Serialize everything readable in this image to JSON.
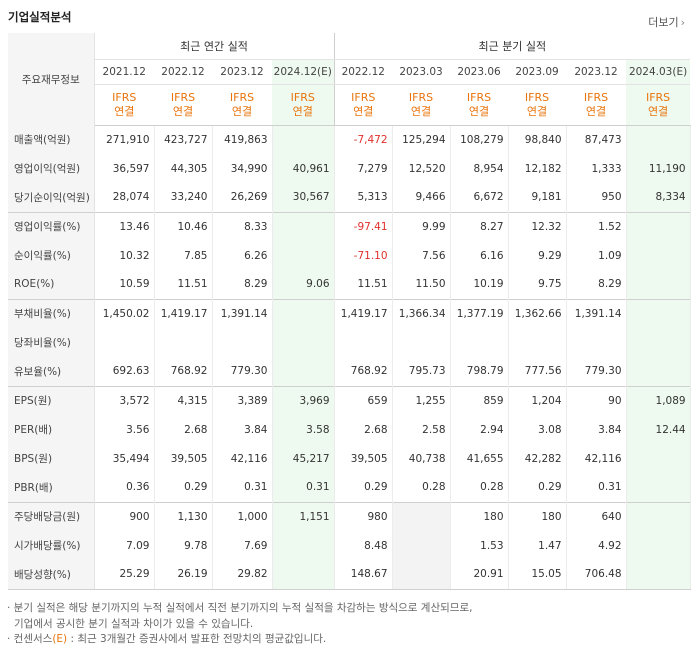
{
  "title": "기업실적분석",
  "more_label": "더보기",
  "more_icon": "chevron-right-icon",
  "corner_label": "주요재무정보",
  "groups": {
    "annual": "최근 연간 실적",
    "quarterly": "최근 분기 실적"
  },
  "annual_periods": [
    "2021.12",
    "2022.12",
    "2023.12",
    "2024.12(E)"
  ],
  "quarterly_periods": [
    "2022.12",
    "2023.03",
    "2023.06",
    "2023.09",
    "2023.12",
    "2024.03(E)"
  ],
  "ifrs_line1": "IFRS",
  "ifrs_line2": "연결",
  "rows": [
    {
      "label": "매출액(억원)",
      "annual": [
        "271,910",
        "423,727",
        "419,863",
        ""
      ],
      "quarterly": [
        "-7,472",
        "125,294",
        "108,279",
        "98,840",
        "87,473",
        ""
      ]
    },
    {
      "label": "영업이익(억원)",
      "annual": [
        "36,597",
        "44,305",
        "34,990",
        "40,961"
      ],
      "quarterly": [
        "7,279",
        "12,520",
        "8,954",
        "12,182",
        "1,333",
        "11,190"
      ]
    },
    {
      "label": "당기순이익(억원)",
      "annual": [
        "28,074",
        "33,240",
        "26,269",
        "30,567"
      ],
      "quarterly": [
        "5,313",
        "9,466",
        "6,672",
        "9,181",
        "950",
        "8,334"
      ]
    },
    {
      "label": "영업이익률(%)",
      "annual": [
        "13.46",
        "10.46",
        "8.33",
        ""
      ],
      "quarterly": [
        "-97.41",
        "9.99",
        "8.27",
        "12.32",
        "1.52",
        ""
      ]
    },
    {
      "label": "순이익률(%)",
      "annual": [
        "10.32",
        "7.85",
        "6.26",
        ""
      ],
      "quarterly": [
        "-71.10",
        "7.56",
        "6.16",
        "9.29",
        "1.09",
        ""
      ]
    },
    {
      "label": "ROE(%)",
      "annual": [
        "10.59",
        "11.51",
        "8.29",
        "9.06"
      ],
      "quarterly": [
        "11.51",
        "11.50",
        "10.19",
        "9.75",
        "8.29",
        ""
      ]
    },
    {
      "label": "부채비율(%)",
      "annual": [
        "1,450.02",
        "1,419.17",
        "1,391.14",
        ""
      ],
      "quarterly": [
        "1,419.17",
        "1,366.34",
        "1,377.19",
        "1,362.66",
        "1,391.14",
        ""
      ]
    },
    {
      "label": "당좌비율(%)",
      "annual": [
        "",
        "",
        "",
        ""
      ],
      "quarterly": [
        "",
        "",
        "",
        "",
        "",
        ""
      ]
    },
    {
      "label": "유보율(%)",
      "annual": [
        "692.63",
        "768.92",
        "779.30",
        ""
      ],
      "quarterly": [
        "768.92",
        "795.73",
        "798.79",
        "777.56",
        "779.30",
        ""
      ]
    },
    {
      "label": "EPS(원)",
      "annual": [
        "3,572",
        "4,315",
        "3,389",
        "3,969"
      ],
      "quarterly": [
        "659",
        "1,255",
        "859",
        "1,204",
        "90",
        "1,089"
      ]
    },
    {
      "label": "PER(배)",
      "annual": [
        "3.56",
        "2.68",
        "3.84",
        "3.58"
      ],
      "quarterly": [
        "2.68",
        "2.58",
        "2.94",
        "3.08",
        "3.84",
        "12.44"
      ]
    },
    {
      "label": "BPS(원)",
      "annual": [
        "35,494",
        "39,505",
        "42,116",
        "45,217"
      ],
      "quarterly": [
        "39,505",
        "40,738",
        "41,655",
        "42,282",
        "42,116",
        ""
      ]
    },
    {
      "label": "PBR(배)",
      "annual": [
        "0.36",
        "0.29",
        "0.31",
        "0.31"
      ],
      "quarterly": [
        "0.29",
        "0.28",
        "0.28",
        "0.29",
        "0.31",
        ""
      ]
    },
    {
      "label": "주당배당금(원)",
      "annual": [
        "900",
        "1,130",
        "1,000",
        "1,151"
      ],
      "quarterly": [
        "980",
        "",
        "180",
        "180",
        "640",
        ""
      ]
    },
    {
      "label": "시가배당률(%)",
      "annual": [
        "7.09",
        "9.78",
        "7.69",
        ""
      ],
      "quarterly": [
        "8.48",
        "",
        "1.53",
        "1.47",
        "4.92",
        ""
      ]
    },
    {
      "label": "배당성향(%)",
      "annual": [
        "25.29",
        "26.19",
        "29.82",
        ""
      ],
      "quarterly": [
        "148.67",
        "",
        "20.91",
        "15.05",
        "706.48",
        ""
      ]
    }
  ],
  "notes": {
    "line1": "· 분기 실적은 해당 분기까지의 누적 실적에서 직전 분기까지의 누적 실적을 차감하는 방식으로 계산되므로,",
    "line2": "기업에서 공시한 분기 실적과 차이가 있을 수 있습니다.",
    "line3_prefix": "· 컨센서스",
    "line3_e": "(E)",
    "line3_suffix": " : 최근 3개월간 증권사에서 발표한 전망치의 평균값입니다."
  }
}
